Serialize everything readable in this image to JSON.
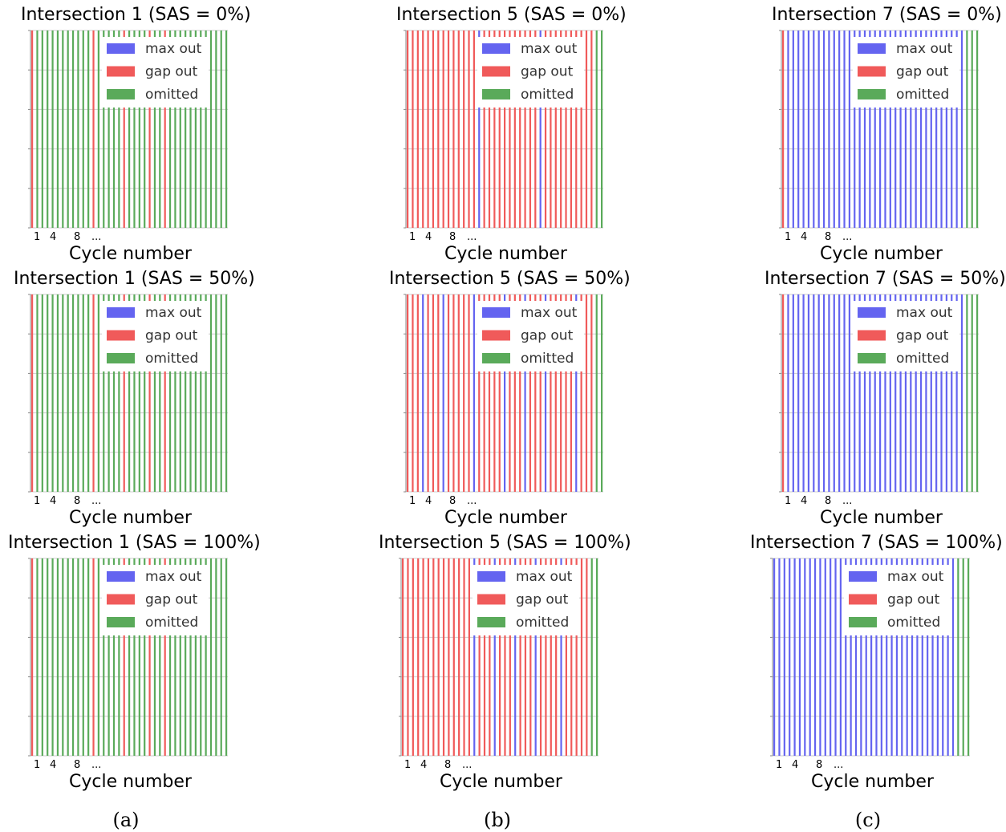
{
  "colors": {
    "max out": "#6464f0",
    "gap out": "#f05a5a",
    "omitted": "#5aaa5a",
    "grid": "#cccccc",
    "axis": "#888888"
  },
  "legend_labels": [
    "max out",
    "gap out",
    "omitted"
  ],
  "tick_labels": [
    "1",
    "4",
    "8",
    "..."
  ],
  "captions": [
    "(a)",
    "(b)",
    "(c)"
  ],
  "chart_data": [
    {
      "type": "bar",
      "title": "Intersection 1 (SAS = 0%)",
      "xlabel": "Cycle number",
      "x": [
        "1",
        "4",
        "8",
        "..."
      ],
      "legend": [
        "max out",
        "gap out",
        "omitted"
      ],
      "bars": [
        "gap out",
        "omitted",
        "omitted",
        "omitted",
        "omitted",
        "omitted",
        "omitted",
        "omitted",
        "omitted",
        "omitted",
        "omitted",
        "omitted",
        "gap out",
        "omitted",
        "omitted",
        "omitted",
        "omitted",
        "omitted",
        "gap out",
        "omitted",
        "omitted",
        "omitted",
        "omitted",
        "gap out",
        "omitted",
        "omitted",
        "gap out",
        "omitted",
        "omitted",
        "omitted",
        "omitted",
        "omitted",
        "omitted",
        "omitted",
        "omitted",
        "omitted",
        "omitted",
        "omitted",
        "omitted"
      ]
    },
    {
      "type": "bar",
      "title": "Intersection 5 (SAS = 0%)",
      "xlabel": "Cycle number",
      "x": [
        "1",
        "4",
        "8",
        "..."
      ],
      "legend": [
        "max out",
        "gap out",
        "omitted"
      ],
      "bars": [
        "gap out",
        "gap out",
        "gap out",
        "gap out",
        "gap out",
        "gap out",
        "gap out",
        "gap out",
        "gap out",
        "gap out",
        "gap out",
        "gap out",
        "gap out",
        "gap out",
        "max out",
        "gap out",
        "gap out",
        "gap out",
        "gap out",
        "gap out",
        "gap out",
        "gap out",
        "gap out",
        "gap out",
        "gap out",
        "gap out",
        "max out",
        "gap out",
        "gap out",
        "gap out",
        "gap out",
        "gap out",
        "gap out",
        "gap out",
        "gap out",
        "gap out",
        "gap out",
        "omitted",
        "omitted"
      ]
    },
    {
      "type": "bar",
      "title": "Intersection 7 (SAS = 0%)",
      "xlabel": "Cycle number",
      "x": [
        "1",
        "4",
        "8",
        "..."
      ],
      "legend": [
        "max out",
        "gap out",
        "omitted"
      ],
      "bars": [
        "gap out",
        "max out",
        "max out",
        "max out",
        "max out",
        "max out",
        "max out",
        "max out",
        "max out",
        "max out",
        "max out",
        "max out",
        "max out",
        "max out",
        "max out",
        "max out",
        "max out",
        "max out",
        "max out",
        "max out",
        "max out",
        "max out",
        "max out",
        "max out",
        "max out",
        "max out",
        "max out",
        "max out",
        "max out",
        "max out",
        "max out",
        "max out",
        "max out",
        "max out",
        "max out",
        "max out",
        "omitted",
        "omitted",
        "omitted"
      ]
    },
    {
      "type": "bar",
      "title": "Intersection 1 (SAS = 50%)",
      "xlabel": "Cycle number",
      "x": [
        "1",
        "4",
        "8",
        "..."
      ],
      "legend": [
        "max out",
        "gap out",
        "omitted"
      ],
      "bars": [
        "gap out",
        "omitted",
        "omitted",
        "omitted",
        "omitted",
        "omitted",
        "omitted",
        "omitted",
        "omitted",
        "omitted",
        "omitted",
        "omitted",
        "gap out",
        "omitted",
        "omitted",
        "omitted",
        "omitted",
        "omitted",
        "gap out",
        "omitted",
        "omitted",
        "omitted",
        "omitted",
        "gap out",
        "omitted",
        "omitted",
        "gap out",
        "omitted",
        "omitted",
        "omitted",
        "omitted",
        "omitted",
        "omitted",
        "omitted",
        "omitted",
        "omitted",
        "omitted",
        "omitted",
        "omitted"
      ]
    },
    {
      "type": "bar",
      "title": "Intersection 5 (SAS = 50%)",
      "xlabel": "Cycle number",
      "x": [
        "1",
        "4",
        "8",
        "..."
      ],
      "legend": [
        "max out",
        "gap out",
        "omitted"
      ],
      "bars": [
        "gap out",
        "gap out",
        "gap out",
        "max out",
        "gap out",
        "gap out",
        "gap out",
        "max out",
        "gap out",
        "gap out",
        "gap out",
        "gap out",
        "gap out",
        "max out",
        "gap out",
        "gap out",
        "gap out",
        "gap out",
        "gap out",
        "max out",
        "gap out",
        "gap out",
        "gap out",
        "max out",
        "gap out",
        "gap out",
        "gap out",
        "max out",
        "gap out",
        "gap out",
        "gap out",
        "gap out",
        "gap out",
        "max out",
        "gap out",
        "gap out",
        "gap out",
        "omitted",
        "omitted"
      ]
    },
    {
      "type": "bar",
      "title": "Intersection 7 (SAS = 50%)",
      "xlabel": "Cycle number",
      "x": [
        "1",
        "4",
        "8",
        "..."
      ],
      "legend": [
        "max out",
        "gap out",
        "omitted"
      ],
      "bars": [
        "gap out",
        "max out",
        "max out",
        "max out",
        "max out",
        "max out",
        "max out",
        "max out",
        "max out",
        "max out",
        "max out",
        "max out",
        "max out",
        "max out",
        "max out",
        "max out",
        "max out",
        "max out",
        "max out",
        "max out",
        "max out",
        "max out",
        "max out",
        "max out",
        "max out",
        "max out",
        "max out",
        "max out",
        "max out",
        "max out",
        "max out",
        "max out",
        "max out",
        "max out",
        "max out",
        "max out",
        "omitted",
        "omitted",
        "omitted"
      ]
    },
    {
      "type": "bar",
      "title": "Intersection 1 (SAS = 100%)",
      "xlabel": "Cycle number",
      "x": [
        "1",
        "4",
        "8",
        "..."
      ],
      "legend": [
        "max out",
        "gap out",
        "omitted"
      ],
      "bars": [
        "gap out",
        "omitted",
        "omitted",
        "omitted",
        "omitted",
        "omitted",
        "omitted",
        "omitted",
        "omitted",
        "omitted",
        "omitted",
        "omitted",
        "gap out",
        "omitted",
        "omitted",
        "omitted",
        "omitted",
        "omitted",
        "gap out",
        "omitted",
        "omitted",
        "omitted",
        "omitted",
        "gap out",
        "omitted",
        "omitted",
        "gap out",
        "omitted",
        "omitted",
        "omitted",
        "omitted",
        "omitted",
        "omitted",
        "omitted",
        "omitted",
        "omitted",
        "omitted",
        "omitted",
        "omitted"
      ]
    },
    {
      "type": "bar",
      "title": "Intersection 5 (SAS = 100%)",
      "xlabel": "Cycle number",
      "x": [
        "1",
        "4",
        "8",
        "..."
      ],
      "legend": [
        "max out",
        "gap out",
        "omitted"
      ],
      "bars": [
        "gap out",
        "gap out",
        "gap out",
        "gap out",
        "gap out",
        "gap out",
        "gap out",
        "gap out",
        "gap out",
        "gap out",
        "gap out",
        "gap out",
        "gap out",
        "gap out",
        "max out",
        "gap out",
        "gap out",
        "gap out",
        "max out",
        "gap out",
        "gap out",
        "gap out",
        "max out",
        "gap out",
        "gap out",
        "gap out",
        "max out",
        "gap out",
        "gap out",
        "gap out",
        "gap out",
        "max out",
        "gap out",
        "gap out",
        "gap out",
        "gap out",
        "gap out",
        "omitted",
        "omitted"
      ]
    },
    {
      "type": "bar",
      "title": "Intersection 7 (SAS = 100%)",
      "xlabel": "Cycle number",
      "x": [
        "1",
        "4",
        "8",
        "..."
      ],
      "legend": [
        "max out",
        "gap out",
        "omitted"
      ],
      "bars": [
        "max out",
        "max out",
        "max out",
        "max out",
        "max out",
        "max out",
        "max out",
        "max out",
        "max out",
        "max out",
        "max out",
        "max out",
        "max out",
        "max out",
        "max out",
        "max out",
        "max out",
        "max out",
        "max out",
        "max out",
        "max out",
        "max out",
        "max out",
        "max out",
        "max out",
        "max out",
        "max out",
        "max out",
        "max out",
        "max out",
        "max out",
        "max out",
        "max out",
        "max out",
        "max out",
        "max out",
        "omitted",
        "omitted",
        "omitted"
      ]
    }
  ]
}
